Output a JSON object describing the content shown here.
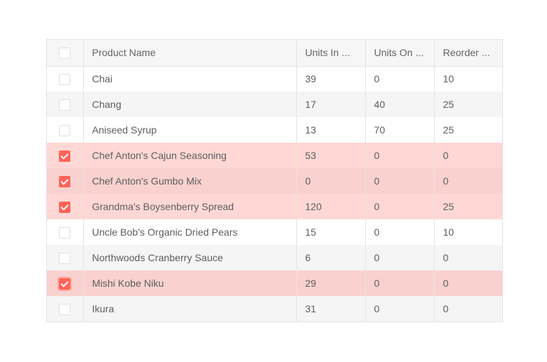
{
  "columns": [
    "Product Name",
    "Units In ...",
    "Units On ...",
    "Reorder ..."
  ],
  "accent": "#ff6358",
  "rows": [
    {
      "name": "Chai",
      "in": "39",
      "on": "0",
      "reorder": "10",
      "selected": false
    },
    {
      "name": "Chang",
      "in": "17",
      "on": "40",
      "reorder": "25",
      "selected": false
    },
    {
      "name": "Aniseed Syrup",
      "in": "13",
      "on": "70",
      "reorder": "25",
      "selected": false
    },
    {
      "name": "Chef Anton's Cajun Seasoning",
      "in": "53",
      "on": "0",
      "reorder": "0",
      "selected": true
    },
    {
      "name": "Chef Anton's Gumbo Mix",
      "in": "0",
      "on": "0",
      "reorder": "0",
      "selected": true
    },
    {
      "name": "Grandma's Boysenberry Spread",
      "in": "120",
      "on": "0",
      "reorder": "25",
      "selected": true
    },
    {
      "name": "Uncle Bob's Organic Dried Pears",
      "in": "15",
      "on": "0",
      "reorder": "10",
      "selected": false
    },
    {
      "name": "Northwoods Cranberry Sauce",
      "in": "6",
      "on": "0",
      "reorder": "0",
      "selected": false
    },
    {
      "name": "Mishi Kobe Niku",
      "in": "29",
      "on": "0",
      "reorder": "0",
      "selected": true,
      "focused": true
    },
    {
      "name": "Ikura",
      "in": "31",
      "on": "0",
      "reorder": "0",
      "selected": false
    }
  ]
}
